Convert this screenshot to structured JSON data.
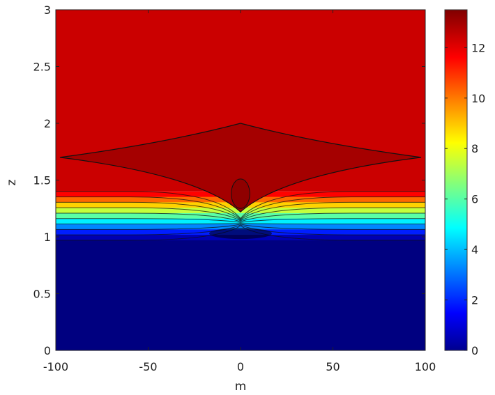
{
  "chart_data": {
    "type": "heatmap",
    "plot_kind": "filled-contour",
    "xlabel": "m",
    "ylabel": "z",
    "xlim": [
      -100,
      100
    ],
    "ylim": [
      0,
      3
    ],
    "x_ticks": [
      "-100",
      "-50",
      "0",
      "50",
      "100"
    ],
    "x_tick_values": [
      -100,
      -50,
      0,
      50,
      100
    ],
    "y_ticks": [
      "0",
      "0.5",
      "1",
      "1.5",
      "2",
      "2.5",
      "3"
    ],
    "y_tick_values": [
      0,
      0.5,
      1,
      1.5,
      2,
      2.5,
      3
    ],
    "colorbar": {
      "colormap": "jet",
      "range": [
        0,
        13.5
      ],
      "ticks": [
        "0",
        "2",
        "4",
        "6",
        "8",
        "10",
        "12"
      ],
      "tick_values": [
        0,
        2,
        4,
        6,
        8,
        10,
        12
      ]
    },
    "regions": [
      {
        "name": "lower",
        "z_range": [
          0,
          0.97
        ],
        "value": 0
      },
      {
        "name": "transition",
        "z_range": [
          0.97,
          1.4
        ],
        "value_range": [
          0,
          12.5
        ]
      },
      {
        "name": "upper",
        "z_range": [
          1.4,
          3
        ],
        "value": 12.5
      }
    ],
    "features": [
      {
        "name": "diamond-contour",
        "center": [
          0,
          1.7
        ],
        "apex_z": [
          1.22,
          2.0
        ],
        "half_width_m": 100,
        "value": 13
      },
      {
        "name": "inner-oval",
        "center": [
          0,
          1.38
        ],
        "half_width_m": 5,
        "half_height_z": 0.13,
        "value": 13.3
      }
    ],
    "grid": false
  }
}
